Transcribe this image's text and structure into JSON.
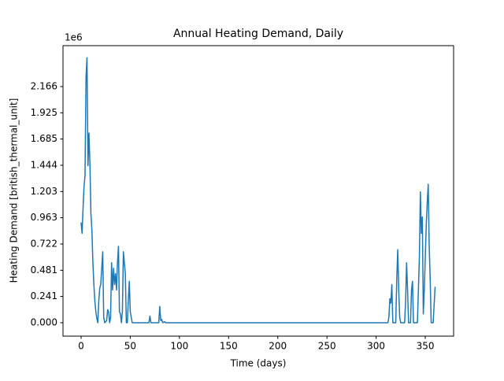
{
  "chart_data": {
    "type": "line",
    "title": "Annual Heating Demand, Daily",
    "x_label": "Time (days)",
    "y_label": "Heating Demand [british_thermal_unit]",
    "y_offset_label": "1e6",
    "xlim": [
      -18.4,
      378.8
    ],
    "ylim": [
      -0.123,
      2.541
    ],
    "xticks": [
      0,
      50,
      100,
      150,
      200,
      250,
      300,
      350
    ],
    "yticks": [
      {
        "value": 0,
        "label": "0.000"
      },
      0.241,
      0.481,
      0.722,
      0.963,
      1.203,
      1.444,
      1.685,
      1.925,
      2.166
    ],
    "grid": false,
    "series": [
      {
        "color": "#1f77b4",
        "x": [
          0,
          1,
          2,
          3,
          4,
          5,
          6,
          7,
          8,
          9,
          10,
          11,
          12,
          13,
          14,
          15,
          16,
          17,
          18,
          19,
          20,
          21,
          22,
          23,
          24,
          26,
          27,
          28,
          29,
          30,
          31,
          32,
          33,
          34,
          35,
          36,
          37,
          38,
          39,
          40,
          41,
          42,
          43,
          44,
          45,
          46,
          47,
          48,
          49,
          50,
          52,
          69,
          70,
          71,
          79,
          80,
          81,
          82,
          83,
          85,
          86,
          312,
          313,
          314,
          315,
          316,
          317,
          320,
          321,
          322,
          323,
          324,
          325,
          329,
          330,
          331,
          332,
          333,
          335,
          336,
          337,
          338,
          342,
          343,
          344,
          345,
          346,
          347,
          348,
          349,
          350,
          351,
          352,
          353,
          354,
          355,
          356,
          358,
          360
        ],
        "values": [
          0.92,
          0.82,
          1.05,
          1.25,
          1.35,
          2.25,
          2.43,
          1.44,
          1.74,
          1.45,
          1.0,
          0.85,
          0.55,
          0.35,
          0.2,
          0.1,
          0.04,
          0,
          0.2,
          0.32,
          0.35,
          0.5,
          0.65,
          0.05,
          0,
          0.02,
          0.12,
          0.1,
          0,
          0.05,
          0.55,
          0.3,
          0.5,
          0.35,
          0.45,
          0.3,
          0.55,
          0.7,
          0.1,
          0.08,
          0,
          0.1,
          0.65,
          0.55,
          0.45,
          0,
          0,
          0.2,
          0.38,
          0.1,
          0,
          0,
          0.06,
          0,
          0,
          0.15,
          0.02,
          0.03,
          0,
          0.01,
          0,
          0,
          0.05,
          0.22,
          0.18,
          0.35,
          0,
          0,
          0.4,
          0.67,
          0.3,
          0.05,
          0,
          0,
          0.2,
          0.55,
          0.3,
          0,
          0,
          0.3,
          0.38,
          0,
          0,
          0.3,
          0.6,
          1.2,
          0.82,
          0.97,
          0.08,
          0.3,
          0.6,
          0.9,
          1.1,
          1.27,
          0.7,
          0.4,
          0,
          0,
          0.33
        ]
      }
    ]
  }
}
